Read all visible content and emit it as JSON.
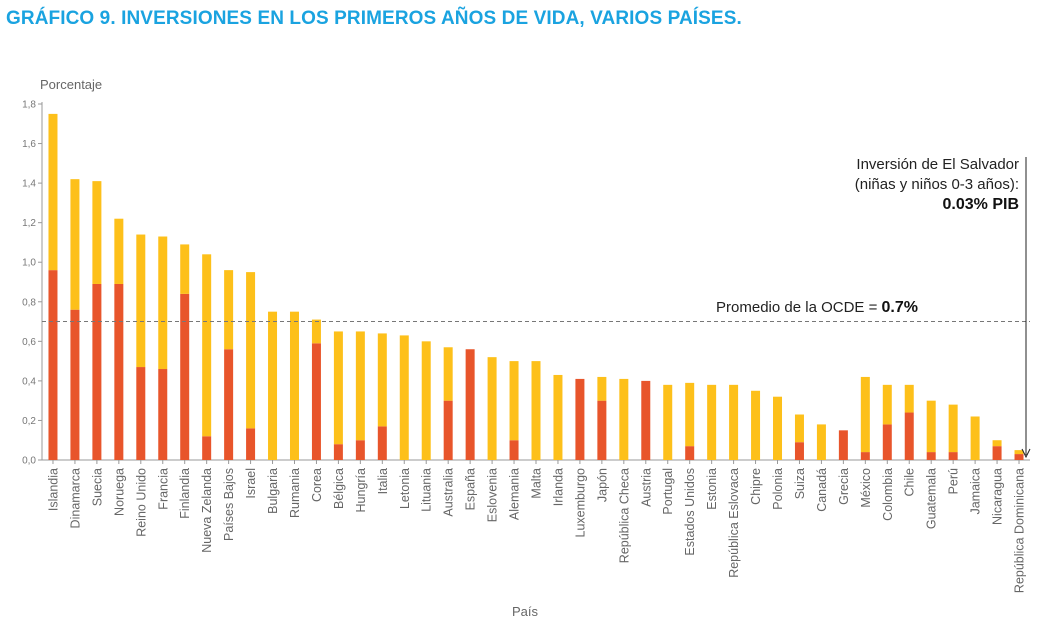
{
  "header": {
    "title": "GRÁFICO 9. INVERSIONES EN LOS PRIMEROS AÑOS DE VIDA, VARIOS PAÍSES."
  },
  "colors": {
    "title": "#1aa3e0",
    "lower": "#e8552b",
    "upper": "#fdc01a",
    "reference_line": "#777777"
  },
  "chart_data": {
    "type": "bar",
    "stacked": true,
    "ylabel": "Porcentaje",
    "xlabel": "País",
    "ylim": [
      0,
      1.8
    ],
    "yticks": [
      "0,0",
      "0,2",
      "0,4",
      "0,6",
      "0,8",
      "1,0",
      "1,2",
      "1,4",
      "1,6",
      "1,8"
    ],
    "grid": false,
    "categories": [
      "Islandia",
      "Dinamarca",
      "Suecia",
      "Noruega",
      "Reino Unido",
      "Francia",
      "Finlandia",
      "Nueva Zelanda",
      "Países Bajos",
      "Israel",
      "Bulgaria",
      "Rumania",
      "Corea",
      "Bélgica",
      "Hungría",
      "Italia",
      "Letonia",
      "Lituania",
      "Australia",
      "España",
      "Eslovenia",
      "Alemania",
      "Malta",
      "Irlanda",
      "Luxemburgo",
      "Japón",
      "República Checa",
      "Austria",
      "Portugal",
      "Estados Unidos",
      "Estonia",
      "República Eslovaca",
      "Chipre",
      "Polonia",
      "Suiza",
      "Canadá",
      "Grecia",
      "México",
      "Colombia",
      "Chile",
      "Guatemala",
      "Perú",
      "Jamaica",
      "Nicaragua",
      "República Dominicana"
    ],
    "series": [
      {
        "color": "#e8552b",
        "values": [
          0.96,
          0.76,
          0.89,
          0.89,
          0.47,
          0.46,
          0.84,
          0.12,
          0.56,
          0.16,
          0.0,
          0.0,
          0.59,
          0.08,
          0.1,
          0.17,
          0.0,
          0.0,
          0.3,
          0.56,
          0.0,
          0.1,
          0.0,
          0.0,
          0.41,
          0.3,
          0.0,
          0.4,
          0.0,
          0.07,
          0.0,
          0.0,
          0.0,
          0.0,
          0.09,
          0.0,
          0.15,
          0.04,
          0.18,
          0.24,
          0.04,
          0.04,
          0.0,
          0.07,
          0.03
        ]
      },
      {
        "color": "#fdc01a",
        "values": [
          0.79,
          0.66,
          0.52,
          0.33,
          0.67,
          0.67,
          0.25,
          0.92,
          0.4,
          0.79,
          0.75,
          0.75,
          0.12,
          0.57,
          0.55,
          0.47,
          0.63,
          0.6,
          0.27,
          0.0,
          0.52,
          0.4,
          0.5,
          0.43,
          0.0,
          0.12,
          0.41,
          0.0,
          0.38,
          0.32,
          0.38,
          0.38,
          0.35,
          0.32,
          0.14,
          0.18,
          0.0,
          0.38,
          0.2,
          0.14,
          0.26,
          0.24,
          0.22,
          0.03,
          0.02
        ]
      }
    ],
    "reference_line": {
      "value": 0.7,
      "label_prefix": "Promedio de la OCDE = ",
      "label_value": "0.7%"
    },
    "annotation": {
      "line1": "Inversión de El Salvador",
      "line2": "(niñas y niños 0-3 años):",
      "value": "0.03% PIB"
    }
  }
}
